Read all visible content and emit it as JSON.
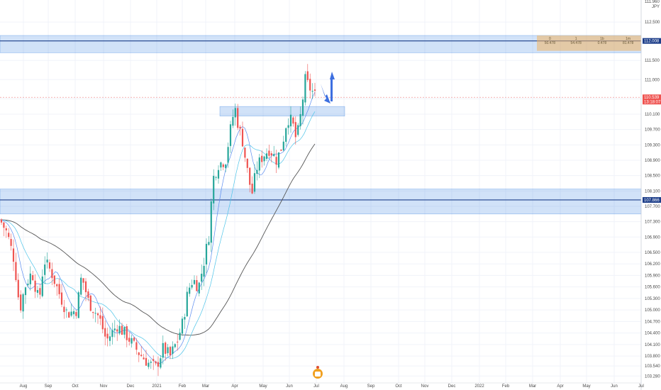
{
  "chart_data": {
    "type": "candlestick",
    "title": "",
    "currency": "JPY",
    "y_axis": {
      "top_label": "111.960",
      "ticks": [
        "112.500",
        "112.000",
        "111.500",
        "111.000",
        "110.500",
        "110.100",
        "109.700",
        "109.300",
        "108.900",
        "108.500",
        "108.100",
        "107.700",
        "107.300",
        "106.900",
        "106.500",
        "106.200",
        "105.900",
        "105.600",
        "105.300",
        "105.000",
        "104.700",
        "104.400",
        "104.100",
        "103.800",
        "103.540",
        "103.280"
      ],
      "ylim": [
        103.1,
        113.0
      ]
    },
    "x_axis": {
      "ticks": [
        "Aug",
        "Sep",
        "Oct",
        "Nov",
        "Dec",
        "2021",
        "Feb",
        "Mar",
        "Apr",
        "May",
        "Jun",
        "Jul",
        "Aug",
        "Sep",
        "Oct",
        "Nov",
        "Dec",
        "2022",
        "Feb",
        "Mar",
        "Apr",
        "May",
        "Jun",
        "Jul"
      ]
    },
    "price_tags": [
      {
        "label": "112.008",
        "price": 112.008,
        "color": "#1e3f8a"
      },
      {
        "label": "110.539",
        "price": 110.539,
        "color": "#ef5350",
        "sublabel": "13:18:07"
      },
      {
        "label": "107.866",
        "price": 107.866,
        "color": "#1e3f8a"
      }
    ],
    "horizontal_lines": [
      {
        "price": 112.008,
        "color": "#1e3f8a"
      },
      {
        "price": 107.866,
        "color": "#1e3f8a"
      },
      {
        "price": 110.539,
        "color": "#ef9a9a",
        "style": "dotted"
      }
    ],
    "zones": [
      {
        "from": 111.7,
        "to": 112.15,
        "color": "#2f7de1"
      },
      {
        "from": 107.5,
        "to": 108.15,
        "color": "#2f7de1"
      },
      {
        "from": 110.05,
        "to": 110.3,
        "color": "#2f7de1",
        "start": "Apr",
        "end": "Jul+"
      }
    ],
    "position_box": {
      "price_from": 111.75,
      "price_to": 112.15,
      "columns": [
        [
          "0",
          "50.478"
        ],
        [
          "1",
          "54.478"
        ],
        [
          "1b",
          "0.478"
        ],
        [
          "1m",
          "81.478"
        ]
      ]
    },
    "arrows": [
      {
        "direction": "down",
        "color": "#3d6fe0"
      },
      {
        "direction": "up",
        "color": "#3d6fe0"
      }
    ],
    "moving_averages": [
      {
        "color": "#555555",
        "period_hint": "200"
      },
      {
        "color": "#5b8cf0",
        "period_hint": "20"
      },
      {
        "color": "#4dc4e8",
        "period_hint": "50"
      }
    ],
    "colors": {
      "up": "#26a69a",
      "down": "#ef5350",
      "grid": "#f0f3fa",
      "axis": "#cfd3dc"
    },
    "watermark_icon": "tradingview-emblem-icon"
  }
}
